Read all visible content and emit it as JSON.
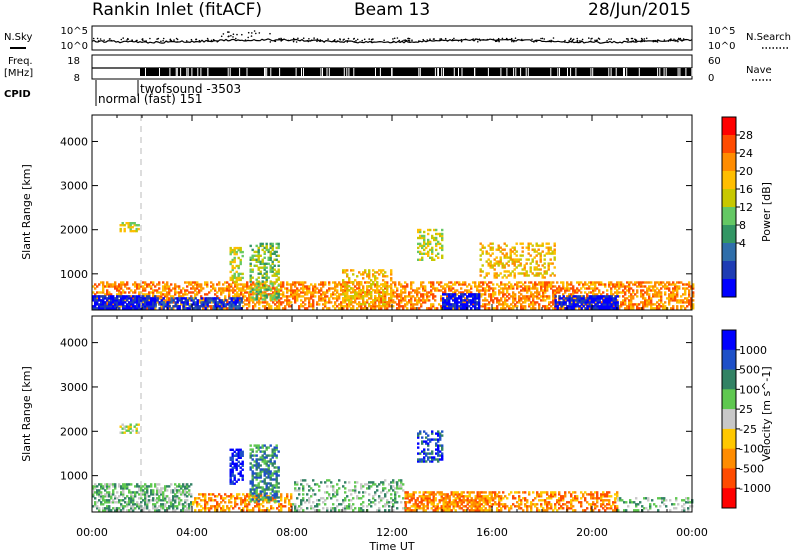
{
  "header": {
    "station": "Rankin Inlet (fitACF)",
    "beam": "Beam 13",
    "date": "28/Jun/2015"
  },
  "strip": {
    "nsky_label": "N.Sky",
    "nsearch_label": "N.Search",
    "freq_label": "Freq.",
    "freq_unit": "[MHz]",
    "cpid_label": "CPID",
    "nave_label": "Nave",
    "noise_ticks_left": [
      "10^5",
      "10^0"
    ],
    "noise_ticks_right": [
      "10^5",
      "10^0"
    ],
    "freq_ticks": [
      "18",
      "8"
    ],
    "nave_ticks": [
      "60",
      "0"
    ],
    "cpid_text_1": "normal (fast) 151",
    "cpid_text_2": "twofsound -3503"
  },
  "axes": {
    "ylabel": "Slant Range [km]",
    "xlabel": "Time UT",
    "yticks": [
      "4000",
      "3000",
      "2000",
      "1000"
    ],
    "xticks": [
      "00:00",
      "04:00",
      "08:00",
      "12:00",
      "16:00",
      "20:00",
      "00:00"
    ]
  },
  "power_scale": {
    "label": "Power [dB]",
    "ticks": [
      "28",
      "24",
      "20",
      "16",
      "12",
      "8",
      "4"
    ],
    "colors": [
      "#ff0000",
      "#ff4b00",
      "#ff8c00",
      "#ffbe00",
      "#c8c800",
      "#64c864",
      "#329664",
      "#2f6eaa",
      "#1e3cb4",
      "#0000ff"
    ]
  },
  "velocity_scale": {
    "label": "Velocity [m s^-1]",
    "ticks": [
      "1000",
      "500",
      "100",
      "25",
      "-25",
      "-100",
      "-500",
      "-1000"
    ],
    "colors": [
      "#0000ff",
      "#1e50c8",
      "#328264",
      "#5fc850",
      "#c8c8c8",
      "#ffc800",
      "#ff8c00",
      "#ff4b00",
      "#ff0000"
    ]
  },
  "chart_data": [
    {
      "type": "heatmap",
      "title": "Power",
      "xlabel": "Time UT",
      "ylabel": "Slant Range [km]",
      "xlim": [
        "00:00",
        "24:00"
      ],
      "ylim": [
        180,
        4600
      ],
      "colorbar_label": "Power [dB]",
      "colorbar_ticks": [
        4,
        8,
        12,
        16,
        20,
        24,
        28
      ],
      "clusters": [
        {
          "t0": 0.0,
          "t1": 24.0,
          "r0": 200,
          "r1": 800,
          "level": 2,
          "density": 0.55
        },
        {
          "t0": 0.0,
          "t1": 2.5,
          "r0": 200,
          "r1": 500,
          "level": 9,
          "density": 0.85
        },
        {
          "t0": 2.5,
          "t1": 6.0,
          "r0": 200,
          "r1": 450,
          "level": 8,
          "density": 0.6
        },
        {
          "t0": 14.0,
          "t1": 15.5,
          "r0": 200,
          "r1": 550,
          "level": 9,
          "density": 0.8
        },
        {
          "t0": 18.5,
          "t1": 21.0,
          "r0": 200,
          "r1": 500,
          "level": 9,
          "density": 0.75
        },
        {
          "t0": 1.1,
          "t1": 1.9,
          "r0": 1950,
          "r1": 2150,
          "level": 4,
          "density": 0.6
        },
        {
          "t0": 5.5,
          "t1": 6.0,
          "r0": 800,
          "r1": 1600,
          "level": 4,
          "density": 0.5
        },
        {
          "t0": 6.3,
          "t1": 7.5,
          "r0": 400,
          "r1": 1700,
          "level": 5,
          "density": 0.5
        },
        {
          "t0": 10.0,
          "t1": 12.0,
          "r0": 250,
          "r1": 1100,
          "level": 3,
          "density": 0.4
        },
        {
          "t0": 13.0,
          "t1": 14.0,
          "r0": 1300,
          "r1": 2000,
          "level": 4,
          "density": 0.45
        },
        {
          "t0": 15.5,
          "t1": 18.5,
          "r0": 900,
          "r1": 1700,
          "level": 3,
          "density": 0.35
        }
      ]
    },
    {
      "type": "heatmap",
      "title": "Velocity",
      "xlabel": "Time UT",
      "ylabel": "Slant Range [km]",
      "xlim": [
        "00:00",
        "24:00"
      ],
      "ylim": [
        180,
        4600
      ],
      "colorbar_label": "Velocity [m s^-1]",
      "colorbar_ticks": [
        -1000,
        -500,
        -100,
        -25,
        25,
        100,
        500,
        1000
      ],
      "clusters": [
        {
          "t0": 0.0,
          "t1": 4.0,
          "r0": 200,
          "r1": 800,
          "level": 3,
          "density": 0.6
        },
        {
          "t0": 4.0,
          "t1": 8.0,
          "r0": 200,
          "r1": 600,
          "level": 6,
          "density": 0.45
        },
        {
          "t0": 5.5,
          "t1": 6.0,
          "r0": 800,
          "r1": 1600,
          "level": 0,
          "density": 0.6
        },
        {
          "t0": 6.3,
          "t1": 7.5,
          "r0": 400,
          "r1": 1700,
          "level": 2,
          "density": 0.5
        },
        {
          "t0": 8.0,
          "t1": 12.5,
          "r0": 200,
          "r1": 900,
          "level": 3,
          "density": 0.3
        },
        {
          "t0": 12.5,
          "t1": 16.0,
          "r0": 200,
          "r1": 650,
          "level": 6,
          "density": 0.65
        },
        {
          "t0": 16.0,
          "t1": 21.0,
          "r0": 200,
          "r1": 650,
          "level": 6,
          "density": 0.5
        },
        {
          "t0": 13.0,
          "t1": 14.0,
          "r0": 1300,
          "r1": 2000,
          "level": 1,
          "density": 0.45
        },
        {
          "t0": 1.1,
          "t1": 1.9,
          "r0": 1950,
          "r1": 2150,
          "level": 4,
          "density": 0.6
        },
        {
          "t0": 21.0,
          "t1": 24.0,
          "r0": 200,
          "r1": 500,
          "level": 3,
          "density": 0.3
        }
      ]
    }
  ]
}
